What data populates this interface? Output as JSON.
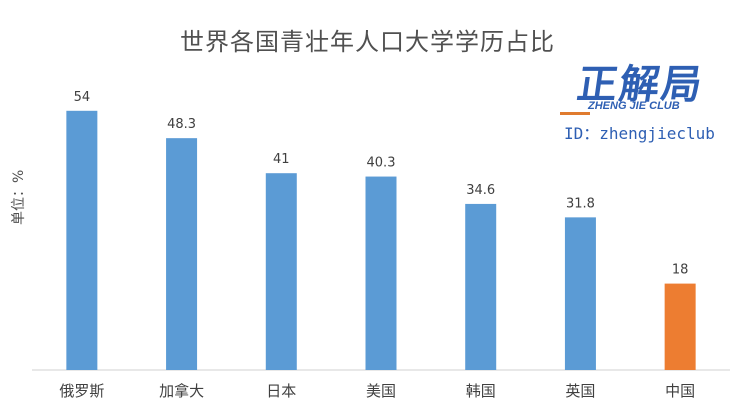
{
  "chart_data": {
    "type": "bar",
    "title": "世界各国青壮年人口大学学历占比",
    "ylabel": "单位：%",
    "xlabel": "",
    "categories": [
      "俄罗斯",
      "加拿大",
      "日本",
      "美国",
      "韩国",
      "英国",
      "中国"
    ],
    "values": [
      54,
      48.3,
      41,
      40.3,
      34.6,
      31.8,
      18
    ],
    "colors": [
      "#5b9bd5",
      "#5b9bd5",
      "#5b9bd5",
      "#5b9bd5",
      "#5b9bd5",
      "#5b9bd5",
      "#ed7d31"
    ],
    "ylim": [
      0,
      60
    ],
    "grid": false,
    "data_labels": true
  },
  "watermark": {
    "logo_text": "正解局",
    "subtitle": "ZHENG JIE CLUB",
    "id_text": "ID：zhengjieclub"
  }
}
